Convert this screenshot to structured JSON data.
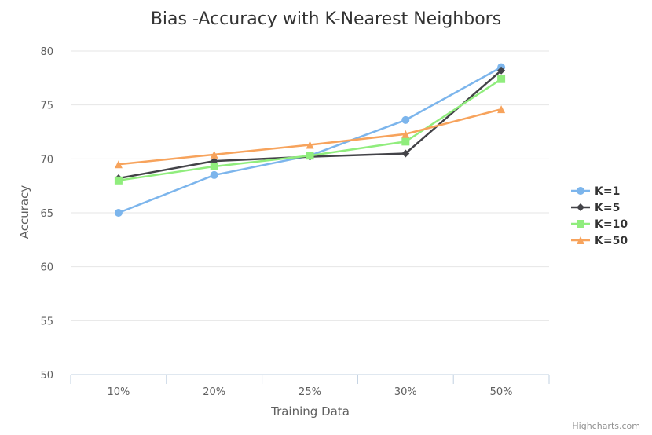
{
  "chart_data": {
    "type": "line",
    "title": "Bias -Accuracy with K-Nearest Neighbors",
    "xlabel": "Training Data",
    "ylabel": "Accuracy",
    "categories": [
      "10%",
      "20%",
      "25%",
      "30%",
      "50%"
    ],
    "ylim": [
      50,
      80
    ],
    "yticks": [
      50,
      55,
      60,
      65,
      70,
      75,
      80
    ],
    "grid": true,
    "legend_position": "right",
    "series": [
      {
        "name": "K=1",
        "color": "#7cb5ec",
        "marker": "circle",
        "values": [
          65.0,
          68.5,
          70.3,
          73.6,
          78.5
        ]
      },
      {
        "name": "K=5",
        "color": "#434348",
        "marker": "diamond",
        "values": [
          68.2,
          69.8,
          70.2,
          70.5,
          78.2
        ]
      },
      {
        "name": "K=10",
        "color": "#90ed7d",
        "marker": "square",
        "values": [
          68.0,
          69.3,
          70.3,
          71.6,
          77.4
        ]
      },
      {
        "name": "K=50",
        "color": "#f7a35c",
        "marker": "triangle",
        "values": [
          69.5,
          70.4,
          71.3,
          72.3,
          74.6
        ]
      }
    ]
  },
  "credits": "Highcharts.com"
}
